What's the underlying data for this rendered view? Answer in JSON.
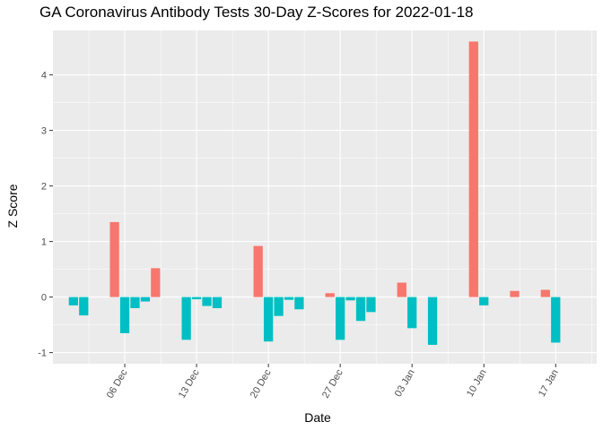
{
  "chart_data": {
    "type": "bar",
    "title": "GA Coronavirus Antibody Tests 30-Day Z-Scores for 2022-01-18",
    "xlabel": "Date",
    "ylabel": "Z Score",
    "ylim": [
      -1.2,
      4.8
    ],
    "y_ticks": [
      -1,
      0,
      1,
      2,
      3,
      4
    ],
    "x_ticks": [
      {
        "date": "2021-12-06",
        "label": "06 Dec"
      },
      {
        "date": "2021-12-13",
        "label": "13 Dec"
      },
      {
        "date": "2021-12-20",
        "label": "20 Dec"
      },
      {
        "date": "2021-12-27",
        "label": "27 Dec"
      },
      {
        "date": "2022-01-03",
        "label": "03 Jan"
      },
      {
        "date": "2022-01-10",
        "label": "10 Jan"
      },
      {
        "date": "2022-01-17",
        "label": "17 Jan"
      }
    ],
    "xlim": [
      "2021-11-29",
      "2022-01-21"
    ],
    "grid": true,
    "legend": "none",
    "colors": {
      "positive": "#F8766D",
      "negative": "#00BFC4",
      "panel": "#EBEBEB",
      "grid": "#FFFFFF"
    },
    "bars": [
      {
        "date": "2021-12-01",
        "value": -0.15
      },
      {
        "date": "2021-12-02",
        "value": -0.33
      },
      {
        "date": "2021-12-05",
        "value": 1.35
      },
      {
        "date": "2021-12-06",
        "value": -0.65
      },
      {
        "date": "2021-12-07",
        "value": -0.2
      },
      {
        "date": "2021-12-08",
        "value": -0.08
      },
      {
        "date": "2021-12-09",
        "value": 0.52
      },
      {
        "date": "2021-12-12",
        "value": -0.77
      },
      {
        "date": "2021-12-13",
        "value": -0.04
      },
      {
        "date": "2021-12-14",
        "value": -0.16
      },
      {
        "date": "2021-12-15",
        "value": -0.2
      },
      {
        "date": "2021-12-19",
        "value": 0.92
      },
      {
        "date": "2021-12-20",
        "value": -0.8
      },
      {
        "date": "2021-12-21",
        "value": -0.34
      },
      {
        "date": "2021-12-22",
        "value": -0.05
      },
      {
        "date": "2021-12-23",
        "value": -0.22
      },
      {
        "date": "2021-12-26",
        "value": 0.07
      },
      {
        "date": "2021-12-27",
        "value": -0.77
      },
      {
        "date": "2021-12-28",
        "value": -0.06
      },
      {
        "date": "2021-12-29",
        "value": -0.43
      },
      {
        "date": "2021-12-30",
        "value": -0.27
      },
      {
        "date": "2022-01-02",
        "value": 0.26
      },
      {
        "date": "2022-01-03",
        "value": -0.56
      },
      {
        "date": "2022-01-05",
        "value": -0.86
      },
      {
        "date": "2022-01-09",
        "value": 4.6
      },
      {
        "date": "2022-01-10",
        "value": -0.15
      },
      {
        "date": "2022-01-13",
        "value": 0.11
      },
      {
        "date": "2022-01-16",
        "value": 0.13
      },
      {
        "date": "2022-01-17",
        "value": -0.82
      }
    ]
  }
}
